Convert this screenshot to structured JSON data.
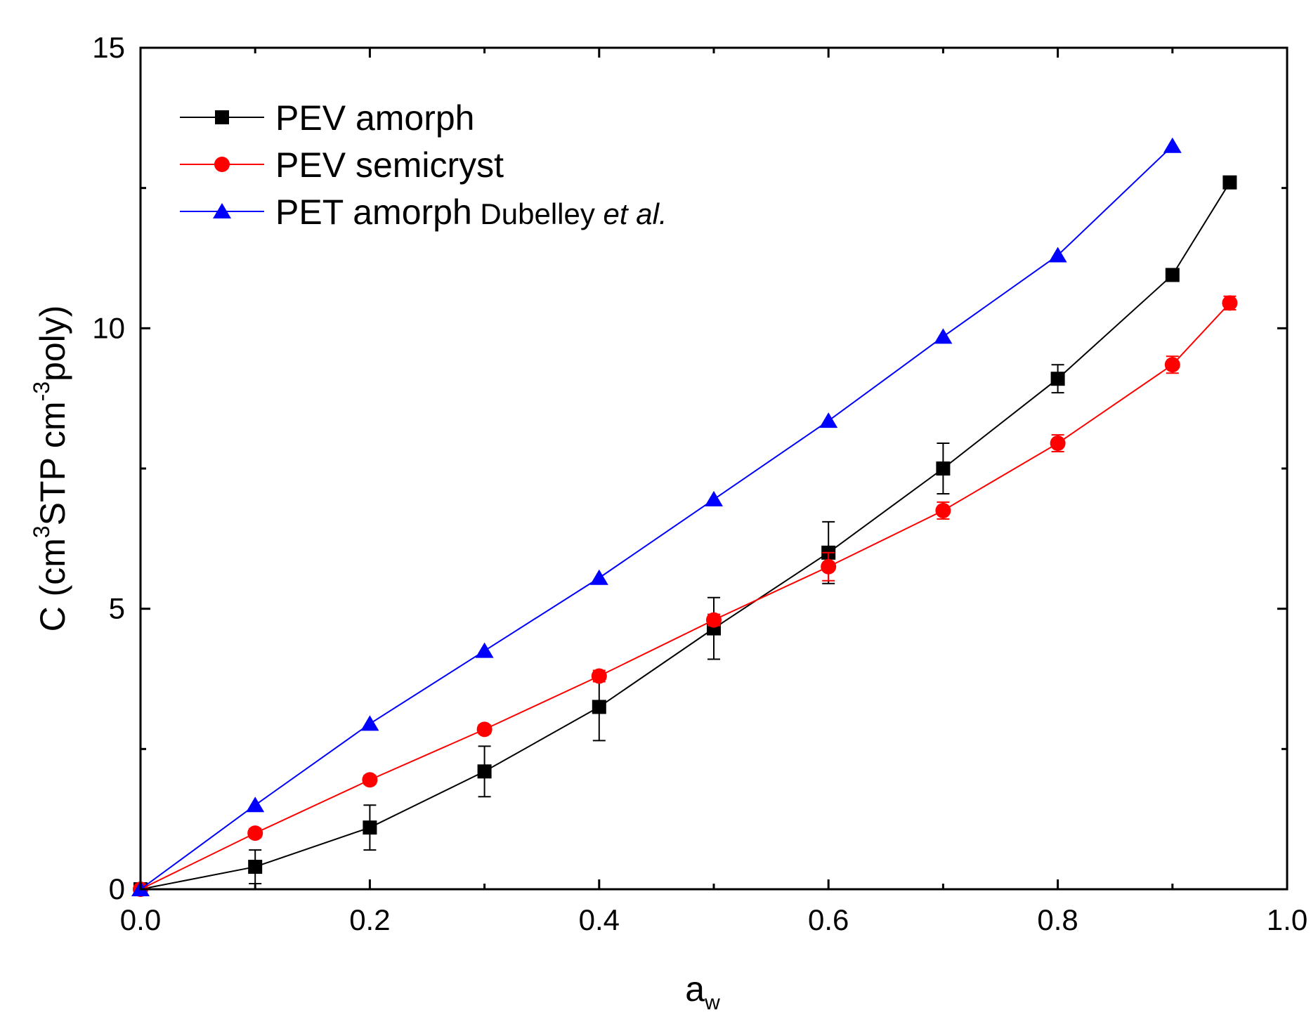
{
  "chart_data": {
    "type": "line",
    "title": "",
    "xlabel": {
      "main": "a",
      "sub": "w"
    },
    "ylabel": {
      "p1": "C (cm",
      "sup1": "3",
      "p2": "STP cm",
      "sup2": "-3",
      "p3": "poly)"
    },
    "xlim": [
      0.0,
      1.0
    ],
    "ylim": [
      0,
      15
    ],
    "x_ticks": [
      "0.0",
      "0.2",
      "0.4",
      "0.6",
      "0.8",
      "1.0"
    ],
    "y_ticks": [
      "0",
      "5",
      "10",
      "15"
    ],
    "grid": false,
    "legend_position": "top-left",
    "series": [
      {
        "name": "PEV amorph",
        "name_parts": {
          "main": "PEV amorph",
          "tail": "",
          "italic": ""
        },
        "color": "#000000",
        "marker": "square",
        "x": [
          0.0,
          0.1,
          0.2,
          0.3,
          0.4,
          0.5,
          0.6,
          0.7,
          0.8,
          0.9,
          0.95
        ],
        "y": [
          0.0,
          0.4,
          1.1,
          2.1,
          3.25,
          4.65,
          6.0,
          7.5,
          9.1,
          10.95,
          12.6
        ],
        "err": [
          0.0,
          0.3,
          0.4,
          0.45,
          0.6,
          0.55,
          0.55,
          0.45,
          0.25,
          0.1,
          0.1
        ]
      },
      {
        "name": "PEV semicryst",
        "name_parts": {
          "main": "PEV semicryst",
          "tail": "",
          "italic": ""
        },
        "color": "#ff0000",
        "marker": "circle",
        "x": [
          0.0,
          0.1,
          0.2,
          0.3,
          0.4,
          0.5,
          0.6,
          0.7,
          0.8,
          0.9,
          0.95
        ],
        "y": [
          0.0,
          1.0,
          1.95,
          2.85,
          3.8,
          4.8,
          5.75,
          6.75,
          7.95,
          9.35,
          10.45
        ],
        "err": [
          0.0,
          0.08,
          0.08,
          0.08,
          0.1,
          0.1,
          0.25,
          0.15,
          0.15,
          0.15,
          0.12
        ]
      },
      {
        "name": "PET amorph Dubelley et al.",
        "name_parts": {
          "main": "PET amorph",
          "tail": "Dubelley",
          "italic": "et al."
        },
        "color": "#0000ff",
        "marker": "triangle",
        "x": [
          0.0,
          0.1,
          0.2,
          0.3,
          0.4,
          0.5,
          0.6,
          0.7,
          0.8,
          0.9
        ],
        "y": [
          0.0,
          1.5,
          2.95,
          4.25,
          5.55,
          6.95,
          8.35,
          9.85,
          11.3,
          13.25
        ],
        "err": [
          0,
          0,
          0,
          0,
          0,
          0,
          0,
          0,
          0,
          0
        ]
      }
    ]
  }
}
